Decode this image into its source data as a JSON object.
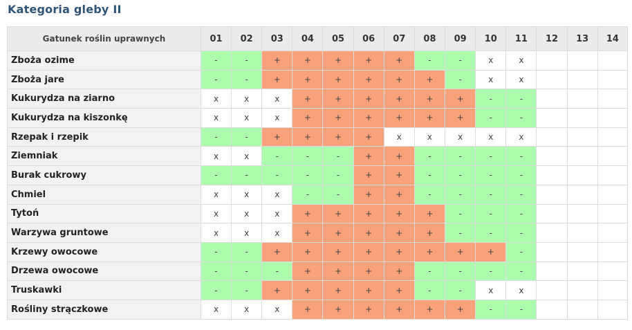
{
  "page_title": "Kategoria gleby II",
  "table": {
    "crop_header": "Gatunek roślin uprawnych",
    "columns": [
      "01",
      "02",
      "03",
      "04",
      "05",
      "06",
      "07",
      "08",
      "09",
      "10",
      "11",
      "12",
      "13",
      "14"
    ],
    "status_colors": {
      "-": "#adfbad",
      "+": "#f9a17a",
      "x": "#ffffff",
      "": "#ffffff"
    },
    "rows": [
      {
        "name": "Zboża ozime",
        "cells": [
          "-",
          "-",
          "+",
          "+",
          "+",
          "+",
          "+",
          "-",
          "-",
          "x",
          "x",
          "",
          "",
          ""
        ]
      },
      {
        "name": "Zboża jare",
        "cells": [
          "-",
          "-",
          "+",
          "+",
          "+",
          "+",
          "+",
          "+",
          "-",
          "x",
          "x",
          "",
          "",
          ""
        ]
      },
      {
        "name": "Kukurydza na ziarno",
        "cells": [
          "x",
          "x",
          "x",
          "+",
          "+",
          "+",
          "+",
          "+",
          "+",
          "-",
          "-",
          "",
          "",
          ""
        ]
      },
      {
        "name": "Kukurydza na kiszonkę",
        "cells": [
          "x",
          "x",
          "x",
          "+",
          "+",
          "+",
          "+",
          "+",
          "+",
          "-",
          "-",
          "",
          "",
          ""
        ]
      },
      {
        "name": "Rzepak i rzepik",
        "cells": [
          "-",
          "-",
          "+",
          "+",
          "+",
          "+",
          "x",
          "x",
          "x",
          "x",
          "x",
          "",
          "",
          ""
        ]
      },
      {
        "name": "Ziemniak",
        "cells": [
          "x",
          "x",
          "-",
          "-",
          "-",
          "+",
          "+",
          "-",
          "-",
          "-",
          "-",
          "",
          "",
          ""
        ]
      },
      {
        "name": "Burak cukrowy",
        "cells": [
          "-",
          "-",
          "-",
          "-",
          "-",
          "+",
          "+",
          "-",
          "-",
          "-",
          "-",
          "",
          "",
          ""
        ]
      },
      {
        "name": "Chmiel",
        "cells": [
          "x",
          "x",
          "x",
          "-",
          "-",
          "+",
          "+",
          "-",
          "-",
          "-",
          "-",
          "",
          "",
          ""
        ]
      },
      {
        "name": "Tytoń",
        "cells": [
          "x",
          "x",
          "x",
          "+",
          "+",
          "+",
          "+",
          "+",
          "-",
          "-",
          "-",
          "",
          "",
          ""
        ]
      },
      {
        "name": "Warzywa gruntowe",
        "cells": [
          "x",
          "x",
          "x",
          "+",
          "+",
          "+",
          "+",
          "+",
          "-",
          "-",
          "-",
          "",
          "",
          ""
        ]
      },
      {
        "name": "Krzewy owocowe",
        "cells": [
          "-",
          "-",
          "+",
          "+",
          "+",
          "+",
          "+",
          "+",
          "+",
          "+",
          "-",
          "",
          "",
          ""
        ]
      },
      {
        "name": "Drzewa owocowe",
        "cells": [
          "-",
          "-",
          "-",
          "+",
          "+",
          "+",
          "+",
          "-",
          "-",
          "-",
          "-",
          "",
          "",
          ""
        ]
      },
      {
        "name": "Truskawki",
        "cells": [
          "-",
          "-",
          "+",
          "+",
          "+",
          "+",
          "+",
          "-",
          "-",
          "x",
          "x",
          "",
          "",
          ""
        ]
      },
      {
        "name": "Rośliny strączkowe",
        "cells": [
          "x",
          "x",
          "x",
          "+",
          "+",
          "+",
          "+",
          "+",
          "+",
          "-",
          "-",
          "",
          "",
          ""
        ]
      }
    ]
  }
}
